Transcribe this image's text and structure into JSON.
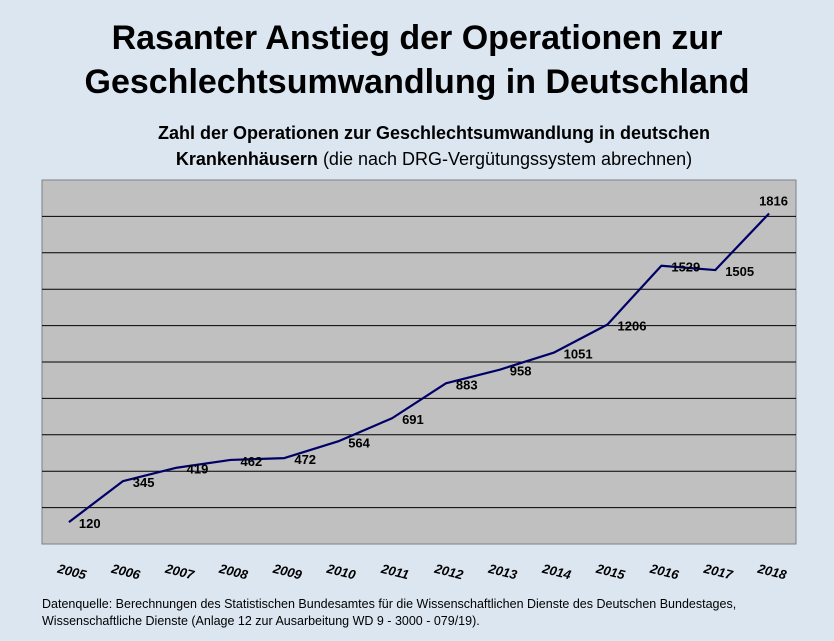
{
  "chart_data": {
    "type": "line",
    "title_line1": "Rasanter Anstieg der Operationen zur",
    "title_line2": "Geschlechtsumwandlung in Deutschland",
    "subtitle_line1": "Zahl der Operationen zur Geschlechtsumwandlung in deutschen",
    "subtitle_line2_bold": "Krankenhäusern",
    "subtitle_line2_rest": " (die nach DRG-Vergütungssystem abrechnen)",
    "x": [
      "2005",
      "2006",
      "2007",
      "2008",
      "2009",
      "2010",
      "2011",
      "2012",
      "2013",
      "2014",
      "2015",
      "2016",
      "2017",
      "2018"
    ],
    "series": [
      {
        "values": [
          120,
          345,
          419,
          462,
          472,
          564,
          691,
          883,
          958,
          1051,
          1206,
          1529,
          1505,
          1816
        ]
      }
    ],
    "ylim": [
      0,
      2000
    ],
    "grid": true,
    "legend": "none",
    "colors": {
      "line": "#000066",
      "plot_bg": "#c0c0c0",
      "grid": "#000000",
      "page_bg": "#dce6f1"
    }
  },
  "source_line1": "Datenquelle: Berechnungen des Statistischen Bundesamtes für die Wissenschaftlichen Dienste des Deutschen Bundestages,",
  "source_line2": "Wissenschaftliche Dienste (Anlage 12 zur Ausarbeitung WD 9 - 3000 - 079/19)."
}
